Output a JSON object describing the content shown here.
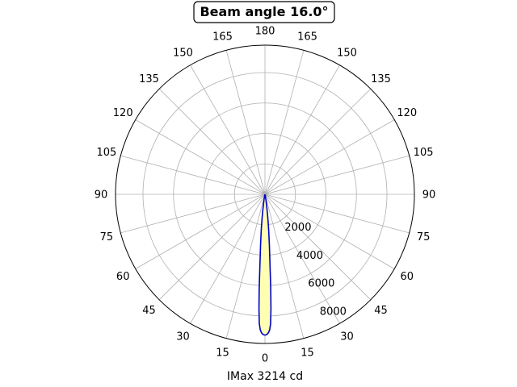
{
  "chart_data": {
    "type": "polar-line",
    "title": "Beam angle 16.0°",
    "xlabel": "IMax 3214 cd",
    "angle_ticks": [
      {
        "deg": 0,
        "label": "0"
      },
      {
        "deg": 15,
        "label": "15"
      },
      {
        "deg": 30,
        "label": "30"
      },
      {
        "deg": 45,
        "label": "45"
      },
      {
        "deg": 60,
        "label": "60"
      },
      {
        "deg": 75,
        "label": "75"
      },
      {
        "deg": 90,
        "label": "90"
      },
      {
        "deg": 105,
        "label": "105"
      },
      {
        "deg": 120,
        "label": "120"
      },
      {
        "deg": 135,
        "label": "135"
      },
      {
        "deg": 150,
        "label": "150"
      },
      {
        "deg": 165,
        "label": "165"
      },
      {
        "deg": 180,
        "label": "180"
      },
      {
        "deg": -165,
        "label": "165"
      },
      {
        "deg": -150,
        "label": "150"
      },
      {
        "deg": -135,
        "label": "135"
      },
      {
        "deg": -120,
        "label": "120"
      },
      {
        "deg": -105,
        "label": "105"
      },
      {
        "deg": -90,
        "label": "90"
      },
      {
        "deg": -75,
        "label": "75"
      },
      {
        "deg": -60,
        "label": "60"
      },
      {
        "deg": -45,
        "label": "45"
      },
      {
        "deg": -30,
        "label": "30"
      },
      {
        "deg": -15,
        "label": "15"
      }
    ],
    "radial_ticks": [
      2000,
      4000,
      6000,
      8000
    ],
    "radial_tick_labels": [
      "2000",
      "4000",
      "6000",
      "8000"
    ],
    "rlim": [
      0,
      9800
    ],
    "grid": true,
    "series": [
      {
        "color": "#0000cc",
        "fill": "#ffffb3",
        "points": [
          {
            "angle": 0,
            "value": 9250
          },
          {
            "angle": 0.5,
            "value": 9230
          },
          {
            "angle": 1.0,
            "value": 9180
          },
          {
            "angle": 1.5,
            "value": 9080
          },
          {
            "angle": 2.0,
            "value": 8900
          },
          {
            "angle": 2.5,
            "value": 8500
          },
          {
            "angle": 3.0,
            "value": 7500
          },
          {
            "angle": 3.5,
            "value": 6200
          },
          {
            "angle": 4.0,
            "value": 4800
          },
          {
            "angle": 5.0,
            "value": 3300
          },
          {
            "angle": 6.0,
            "value": 2300
          },
          {
            "angle": 7.0,
            "value": 1500
          },
          {
            "angle": 8.0,
            "value": 900
          },
          {
            "angle": 10.0,
            "value": 350
          },
          {
            "angle": 12.0,
            "value": 60
          },
          {
            "angle": 15.0,
            "value": 0
          }
        ]
      }
    ]
  }
}
